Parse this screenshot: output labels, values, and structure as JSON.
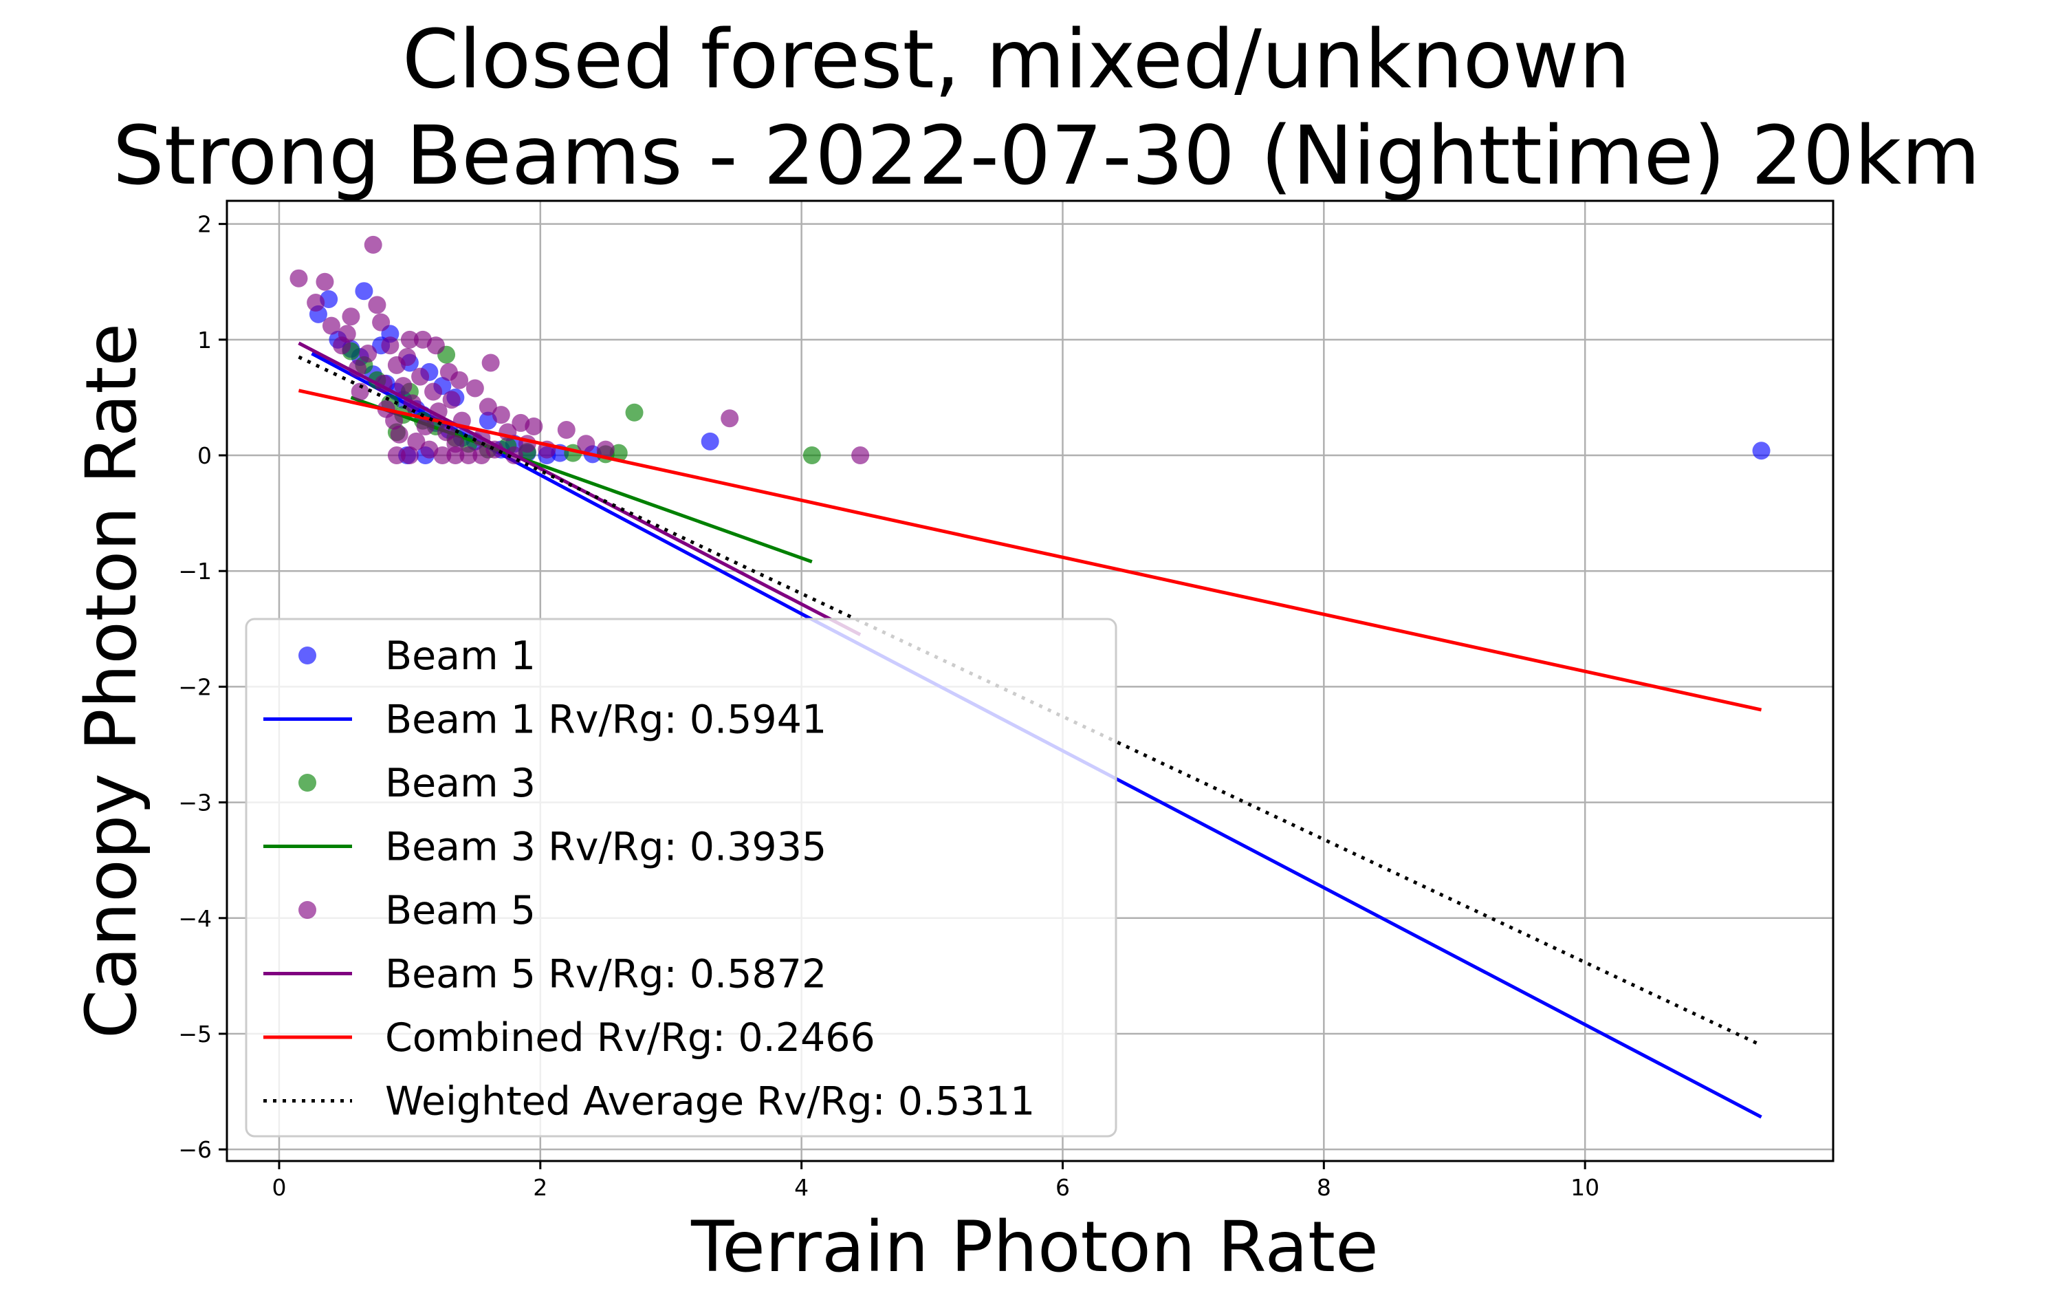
{
  "chart_data": {
    "type": "scatter",
    "title_line1": "Closed forest, mixed/unknown",
    "title_line2": "Strong Beams - 2022-07-30 (Nighttime) 20km",
    "xlabel": "Terrain Photon Rate",
    "ylabel": "Canopy Photon Rate",
    "xlim": [
      -0.4,
      11.9
    ],
    "ylim": [
      -6.1,
      2.2
    ],
    "xticks": [
      0,
      2,
      4,
      6,
      8,
      10
    ],
    "yticks": [
      -6,
      -5,
      -4,
      -3,
      -2,
      -1,
      0,
      1,
      2
    ],
    "grid": true,
    "legend_position": "lower-left",
    "series": [
      {
        "name": "Beam 1",
        "kind": "scatter",
        "color": "#0000ff",
        "points": [
          [
            0.3,
            1.22
          ],
          [
            0.38,
            1.35
          ],
          [
            0.45,
            1.0
          ],
          [
            0.55,
            0.92
          ],
          [
            0.62,
            0.85
          ],
          [
            0.65,
            1.42
          ],
          [
            0.72,
            0.7
          ],
          [
            0.78,
            0.95
          ],
          [
            0.82,
            0.62
          ],
          [
            0.85,
            1.05
          ],
          [
            0.9,
            0.55
          ],
          [
            0.95,
            0.48
          ],
          [
            1.0,
            0.8
          ],
          [
            1.05,
            0.4
          ],
          [
            1.1,
            0.35
          ],
          [
            1.15,
            0.72
          ],
          [
            1.2,
            0.28
          ],
          [
            1.25,
            0.6
          ],
          [
            1.3,
            0.22
          ],
          [
            1.35,
            0.5
          ],
          [
            1.4,
            0.15
          ],
          [
            1.5,
            0.12
          ],
          [
            1.6,
            0.3
          ],
          [
            1.7,
            0.05
          ],
          [
            1.8,
            0.1
          ],
          [
            1.9,
            0.02
          ],
          [
            2.05,
            0.0
          ],
          [
            2.15,
            0.02
          ],
          [
            2.4,
            0.01
          ],
          [
            3.3,
            0.12
          ],
          [
            0.98,
            0.0
          ],
          [
            1.12,
            0.0
          ],
          [
            11.35,
            0.04
          ]
        ]
      },
      {
        "name": "Beam 1 Rv/Rg: 0.5941",
        "kind": "line",
        "color": "#0000ff",
        "points": [
          [
            0.25,
            0.88
          ],
          [
            4.05,
            -1.4
          ],
          [
            6.45,
            -2.82
          ],
          [
            11.35,
            -5.72
          ]
        ]
      },
      {
        "name": "Beam 3",
        "kind": "scatter",
        "color": "#008000",
        "points": [
          [
            0.55,
            0.9
          ],
          [
            0.65,
            0.78
          ],
          [
            0.75,
            0.65
          ],
          [
            0.85,
            0.45
          ],
          [
            0.9,
            0.2
          ],
          [
            0.95,
            0.35
          ],
          [
            1.0,
            0.55
          ],
          [
            1.1,
            0.3
          ],
          [
            1.2,
            0.25
          ],
          [
            1.28,
            0.87
          ],
          [
            1.35,
            0.15
          ],
          [
            1.45,
            0.1
          ],
          [
            1.6,
            0.05
          ],
          [
            1.75,
            0.08
          ],
          [
            1.9,
            0.03
          ],
          [
            2.25,
            0.02
          ],
          [
            2.5,
            0.01
          ],
          [
            2.6,
            0.02
          ],
          [
            2.72,
            0.37
          ],
          [
            4.08,
            0.0
          ]
        ]
      },
      {
        "name": "Beam 3 Rv/Rg: 0.3935",
        "kind": "line",
        "color": "#008000",
        "points": [
          [
            0.55,
            0.5
          ],
          [
            4.08,
            -0.92
          ]
        ]
      },
      {
        "name": "Beam 5",
        "kind": "scatter",
        "color": "#800080",
        "points": [
          [
            0.15,
            1.53
          ],
          [
            0.28,
            1.32
          ],
          [
            0.35,
            1.5
          ],
          [
            0.4,
            1.12
          ],
          [
            0.48,
            0.95
          ],
          [
            0.52,
            1.05
          ],
          [
            0.55,
            1.2
          ],
          [
            0.6,
            0.75
          ],
          [
            0.62,
            0.55
          ],
          [
            0.68,
            0.88
          ],
          [
            0.72,
            1.82
          ],
          [
            0.75,
            1.3
          ],
          [
            0.78,
            1.15
          ],
          [
            0.8,
            0.62
          ],
          [
            0.82,
            0.4
          ],
          [
            0.85,
            0.95
          ],
          [
            0.88,
            0.3
          ],
          [
            0.9,
            0.78
          ],
          [
            0.92,
            0.18
          ],
          [
            0.95,
            0.6
          ],
          [
            0.98,
            0.85
          ],
          [
            1.0,
            1.0
          ],
          [
            1.02,
            0.45
          ],
          [
            1.05,
            0.12
          ],
          [
            1.08,
            0.68
          ],
          [
            1.1,
            1.0
          ],
          [
            1.12,
            0.25
          ],
          [
            1.15,
            0.05
          ],
          [
            1.18,
            0.55
          ],
          [
            1.2,
            0.95
          ],
          [
            1.22,
            0.38
          ],
          [
            1.25,
            0.0
          ],
          [
            1.28,
            0.2
          ],
          [
            1.3,
            0.72
          ],
          [
            1.32,
            0.48
          ],
          [
            1.35,
            0.1
          ],
          [
            1.38,
            0.65
          ],
          [
            1.4,
            0.3
          ],
          [
            1.45,
            0.0
          ],
          [
            1.5,
            0.58
          ],
          [
            1.55,
            0.15
          ],
          [
            1.6,
            0.42
          ],
          [
            1.62,
            0.8
          ],
          [
            1.65,
            0.05
          ],
          [
            1.7,
            0.35
          ],
          [
            1.75,
            0.2
          ],
          [
            1.8,
            0.0
          ],
          [
            1.85,
            0.28
          ],
          [
            1.9,
            0.1
          ],
          [
            1.95,
            0.25
          ],
          [
            2.05,
            0.05
          ],
          [
            2.2,
            0.22
          ],
          [
            2.35,
            0.1
          ],
          [
            2.5,
            0.05
          ],
          [
            3.45,
            0.32
          ],
          [
            4.45,
            0.0
          ],
          [
            0.9,
            0.0
          ],
          [
            1.0,
            0.0
          ],
          [
            1.35,
            0.0
          ],
          [
            1.55,
            0.0
          ]
        ]
      },
      {
        "name": "Beam 5 Rv/Rg: 0.5872",
        "kind": "line",
        "color": "#800080",
        "points": [
          [
            0.15,
            0.97
          ],
          [
            4.45,
            -1.55
          ]
        ]
      },
      {
        "name": "Combined Rv/Rg: 0.2466",
        "kind": "line",
        "color": "#ff0000",
        "points": [
          [
            0.15,
            0.56
          ],
          [
            11.35,
            -2.2
          ]
        ]
      },
      {
        "name": "Weighted Average Rv/Rg: 0.5311",
        "kind": "dotted",
        "color": "#000000",
        "points": [
          [
            0.15,
            0.85
          ],
          [
            11.35,
            -5.1
          ]
        ]
      }
    ]
  }
}
